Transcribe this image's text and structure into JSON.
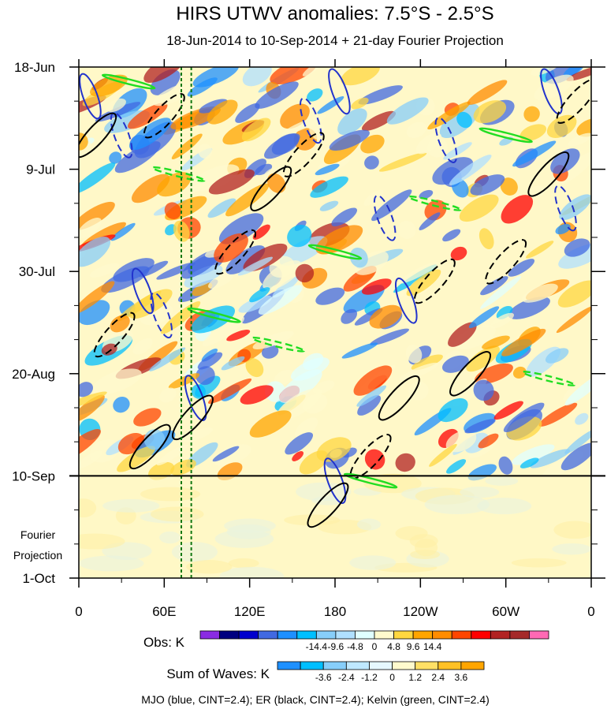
{
  "chart_data": {
    "type": "heatmap",
    "title": "HIRS UTWV anomalies: 7.5°S - 2.5°S",
    "subtitle": "18-Jun-2014 to 10-Sep-2014 + 21-day Fourier Projection",
    "xlabel": "",
    "ylabel": "",
    "x_ticks": [
      "0",
      "60E",
      "120E",
      "180",
      "120W",
      "60W",
      "0"
    ],
    "x_tick_lon": [
      0,
      60,
      120,
      180,
      240,
      300,
      360
    ],
    "y_ticks": [
      "18-Jun",
      "9-Jul",
      "30-Jul",
      "20-Aug",
      "10-Sep",
      "1-Oct"
    ],
    "y_tick_day": [
      0,
      21,
      42,
      63,
      84,
      105
    ],
    "day_range": [
      0,
      105
    ],
    "observation_end_day": 84,
    "projection_label": [
      "Fourier",
      "Projection"
    ],
    "reference_lines_lon": [
      72,
      79
    ],
    "obs_colorbar": {
      "label": "Obs: K",
      "labels": [
        "-14.4",
        "-9.6",
        "-4.8",
        "0",
        "4.8",
        "9.6",
        "14.4"
      ],
      "colors": [
        "#8a2be2",
        "#000080",
        "#0000cd",
        "#4169e1",
        "#1e90ff",
        "#00bfff",
        "#87cefa",
        "#b0e0ff",
        "#e0ffff",
        "#fffacd",
        "#ffd740",
        "#ffa500",
        "#ff8c00",
        "#ff4500",
        "#ff0000",
        "#b22222",
        "#a52a2a",
        "#ff69b4"
      ]
    },
    "waves_colorbar": {
      "label": "Sum of Waves: K",
      "labels": [
        "-3.6",
        "-2.4",
        "-1.2",
        "0",
        "1.2",
        "2.4",
        "3.6"
      ],
      "colors": [
        "#1e90ff",
        "#00bfff",
        "#87cefa",
        "#bfe8ff",
        "#e6f8ff",
        "#fffacd",
        "#ffe066",
        "#ffc125",
        "#ffa500"
      ]
    },
    "contour_note": "MJO (blue, CINT=2.4); ER (black, CINT=2.4); Kelvin (green, CINT=2.4)",
    "series": [
      {
        "name": "MJO",
        "color": "#2233cc",
        "centers": [
          [
            8,
            6
          ],
          [
            30,
            14
          ],
          [
            45,
            46
          ],
          [
            58,
            51
          ],
          [
            82,
            68
          ],
          [
            163,
            11
          ],
          [
            183,
            5
          ],
          [
            215,
            31
          ],
          [
            230,
            48
          ],
          [
            258,
            15
          ],
          [
            332,
            5
          ],
          [
            342,
            29
          ],
          [
            180,
            85
          ]
        ]
      },
      {
        "name": "ER",
        "color": "#000000",
        "centers": [
          [
            12,
            14
          ],
          [
            25,
            55
          ],
          [
            50,
            78
          ],
          [
            60,
            10
          ],
          [
            80,
            72
          ],
          [
            110,
            38
          ],
          [
            135,
            25
          ],
          [
            158,
            18
          ],
          [
            175,
            90
          ],
          [
            205,
            80
          ],
          [
            225,
            68
          ],
          [
            250,
            44
          ],
          [
            275,
            63
          ],
          [
            300,
            40
          ],
          [
            330,
            22
          ],
          [
            350,
            7
          ]
        ]
      },
      {
        "name": "Kelvin",
        "color": "#22dd22",
        "centers": [
          [
            35,
            3
          ],
          [
            70,
            22
          ],
          [
            95,
            51
          ],
          [
            140,
            57
          ],
          [
            180,
            38
          ],
          [
            250,
            28
          ],
          [
            300,
            14
          ],
          [
            330,
            64
          ],
          [
            205,
            85
          ]
        ]
      }
    ]
  }
}
